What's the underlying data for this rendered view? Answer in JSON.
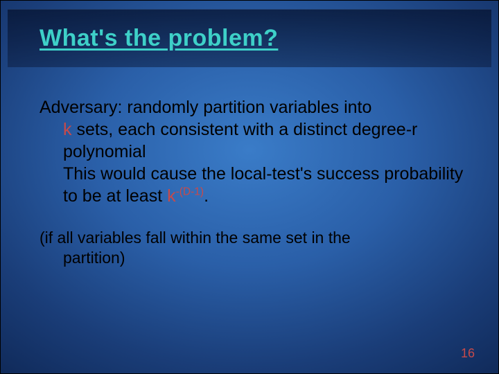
{
  "slide": {
    "title": "What's the problem?",
    "body": {
      "p1_lead": "Adversary: randomly partition variables into",
      "p1_cont_a_prefix": "",
      "k": "k",
      "p1_cont_a_rest": " sets, each consistent with a distinct degree-r polynomial",
      "p1_cont_b": "This would cause the local-test's success probability to be at least ",
      "exp": "-(D-1)",
      "period": ".",
      "p2_lead": "(if all variables fall within the same set in the",
      "p2_cont": "partition)"
    },
    "page_number": "16",
    "colors": {
      "title": "#3ed0c8",
      "accent": "#c84a4a",
      "bg_inner": "#3a7cc8",
      "bg_outer": "#0a1f48"
    },
    "fontsizes": {
      "title": 34,
      "body": 25,
      "body_small": 23,
      "pagenum": 18
    }
  }
}
